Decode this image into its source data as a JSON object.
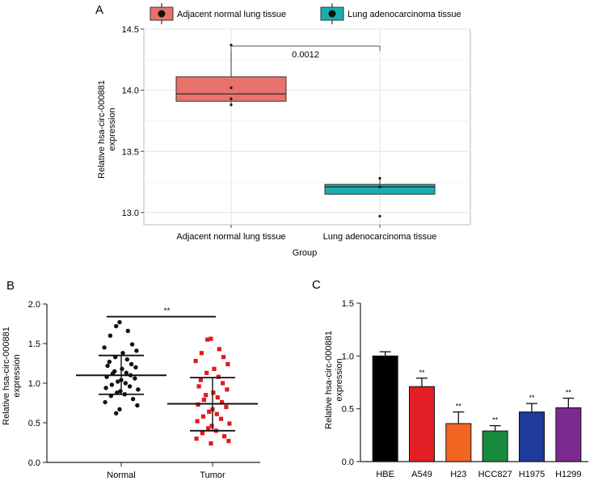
{
  "chart_data": [
    {
      "type": "box",
      "panel_label": "A",
      "legend_position": "top",
      "legend": [
        {
          "label": "Adjacent normal lung tissue",
          "color": "#E8736C"
        },
        {
          "label": "Lung adenocarcinoma tissue",
          "color": "#1AACB1"
        }
      ],
      "categories": [
        "Adjacent normal lung tissue",
        "Lung adenocarcinoma tissue"
      ],
      "xlabel": "Group",
      "ylabel_lines": [
        "Relative hsa-circ-000881",
        "expression"
      ],
      "ylim": [
        12.9,
        14.5
      ],
      "yticks": [
        13.0,
        13.5,
        14.0,
        14.5
      ],
      "ytick_labels": [
        "13.0",
        "13.5",
        "14.0",
        "14.5"
      ],
      "grid": true,
      "boxes": [
        {
          "q1": 13.91,
          "median": 13.97,
          "q3": 14.11,
          "whisker_low": 13.88,
          "whisker_high": 14.37,
          "points": [
            14.37,
            14.02,
            13.93,
            13.88
          ]
        },
        {
          "q1": 13.15,
          "median": 13.21,
          "q3": 13.23,
          "whisker_low": 13.15,
          "whisker_high": 13.28,
          "points": [
            13.28,
            13.21,
            12.97
          ]
        }
      ],
      "annotation": "0.0012"
    },
    {
      "type": "scatter",
      "panel_label": "B",
      "categories": [
        "Normal",
        "Tumor"
      ],
      "ylabel_lines": [
        "Relative hsa-circ-000881",
        "expression"
      ],
      "ylim": [
        0,
        2.0
      ],
      "yticks": [
        0,
        0.5,
        1.0,
        1.5,
        2.0
      ],
      "ytick_labels": [
        "0.0",
        "0.5",
        "1.0",
        "1.5",
        "2.0"
      ],
      "series": [
        {
          "name": "Normal",
          "color": "#111111",
          "marker": "circle",
          "mean": 1.1,
          "sd_low": 0.86,
          "sd_high": 1.35,
          "values": [
            1.77,
            1.72,
            1.66,
            1.6,
            1.49,
            1.45,
            1.41,
            1.38,
            1.33,
            1.3,
            1.27,
            1.24,
            1.22,
            1.2,
            1.18,
            1.15,
            1.13,
            1.12,
            1.1,
            1.08,
            1.06,
            1.04,
            1.02,
            1.0,
            0.98,
            0.96,
            0.94,
            0.92,
            0.9,
            0.88,
            0.86,
            0.84,
            0.8,
            0.76,
            0.72,
            0.67,
            0.62
          ]
        },
        {
          "name": "Tumor",
          "color": "#E31A1C",
          "marker": "square",
          "mean": 0.74,
          "sd_low": 0.4,
          "sd_high": 1.07,
          "values": [
            1.56,
            1.55,
            1.43,
            1.38,
            1.33,
            1.28,
            1.24,
            1.18,
            1.13,
            1.08,
            1.04,
            1.0,
            0.96,
            0.92,
            0.88,
            0.85,
            0.82,
            0.79,
            0.76,
            0.73,
            0.7,
            0.67,
            0.64,
            0.61,
            0.58,
            0.55,
            0.52,
            0.49,
            0.46,
            0.43,
            0.4,
            0.37,
            0.33,
            0.3,
            0.27,
            0.24
          ]
        }
      ],
      "annotation": "**"
    },
    {
      "type": "bar",
      "panel_label": "C",
      "categories": [
        "HBE",
        "A549",
        "H23",
        "HCC827",
        "H1975",
        "H1299"
      ],
      "values": [
        1.0,
        0.71,
        0.36,
        0.29,
        0.47,
        0.51
      ],
      "errors": [
        0.04,
        0.08,
        0.11,
        0.05,
        0.08,
        0.09
      ],
      "colors": [
        "#000000",
        "#E31E24",
        "#F26522",
        "#188A3E",
        "#1E3A9A",
        "#7B2A8F"
      ],
      "significance": [
        "",
        "**",
        "**",
        "**",
        "**",
        "**"
      ],
      "ylabel_lines": [
        "Relative hsa-circ-000881",
        "expression"
      ],
      "ylim": [
        0,
        1.5
      ],
      "yticks": [
        0,
        0.5,
        1.0,
        1.5
      ],
      "ytick_labels": [
        "0.0",
        "0.5",
        "1.0",
        "1.5"
      ]
    }
  ]
}
